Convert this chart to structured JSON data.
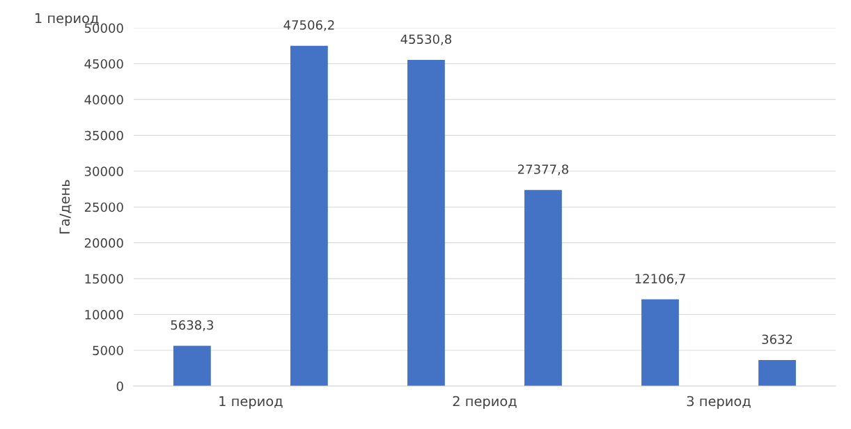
{
  "chart_data": {
    "type": "bar",
    "ylabel": "Га/день",
    "categories": [
      "1 период",
      "2 период",
      "3 период"
    ],
    "series": [
      {
        "color": "#4472c4",
        "values": [
          5638.3,
          45530.8,
          12106.7
        ],
        "value_labels": [
          "5638,3",
          "45530,8",
          "12106,7"
        ]
      },
      {
        "color": "#4472c4",
        "values": [
          47506.2,
          27377.8,
          3632
        ],
        "value_labels": [
          "47506,2",
          "27377,8",
          "3632"
        ]
      }
    ],
    "ylim": [
      0,
      50000
    ],
    "yticks": [
      0,
      5000,
      10000,
      15000,
      20000,
      25000,
      30000,
      35000,
      40000,
      45000,
      50000
    ],
    "grid": "y",
    "legend": false,
    "annotations": [
      "1 период"
    ]
  }
}
